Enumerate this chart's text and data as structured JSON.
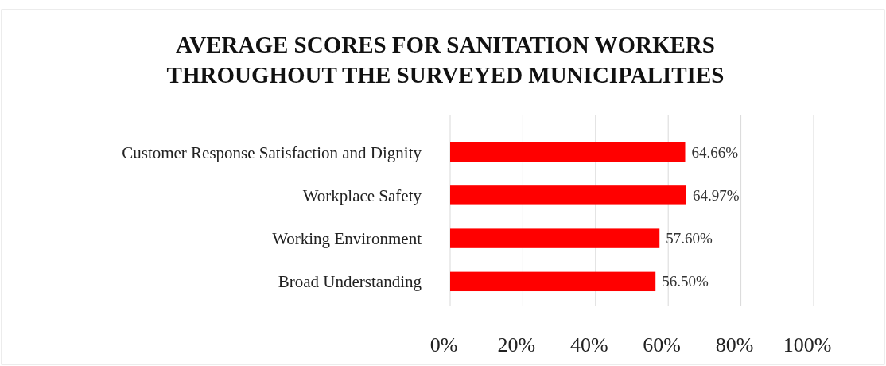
{
  "chart_data": {
    "type": "bar",
    "orientation": "horizontal",
    "title": "AVERAGE SCORES FOR SANITATION WORKERS\nTHROUGHOUT THE SURVEYED MUNICIPALITIES",
    "categories": [
      "Customer Response Satisfaction and Dignity",
      "Workplace Safety",
      "Working Environment",
      "Broad Understanding"
    ],
    "values": [
      64.66,
      64.97,
      57.6,
      56.5
    ],
    "value_labels": [
      "64.66%",
      "64.97%",
      "57.60%",
      "56.50%"
    ],
    "color": "#ff0000",
    "xlim": [
      0,
      100
    ],
    "xticks": [
      {
        "value": 0,
        "label": "0%"
      },
      {
        "value": 20,
        "label": "20%"
      },
      {
        "value": 40,
        "label": "40%"
      },
      {
        "value": 60,
        "label": "60%"
      },
      {
        "value": 80,
        "label": "80%"
      },
      {
        "value": 100,
        "label": "100%"
      }
    ],
    "grid": "x"
  }
}
